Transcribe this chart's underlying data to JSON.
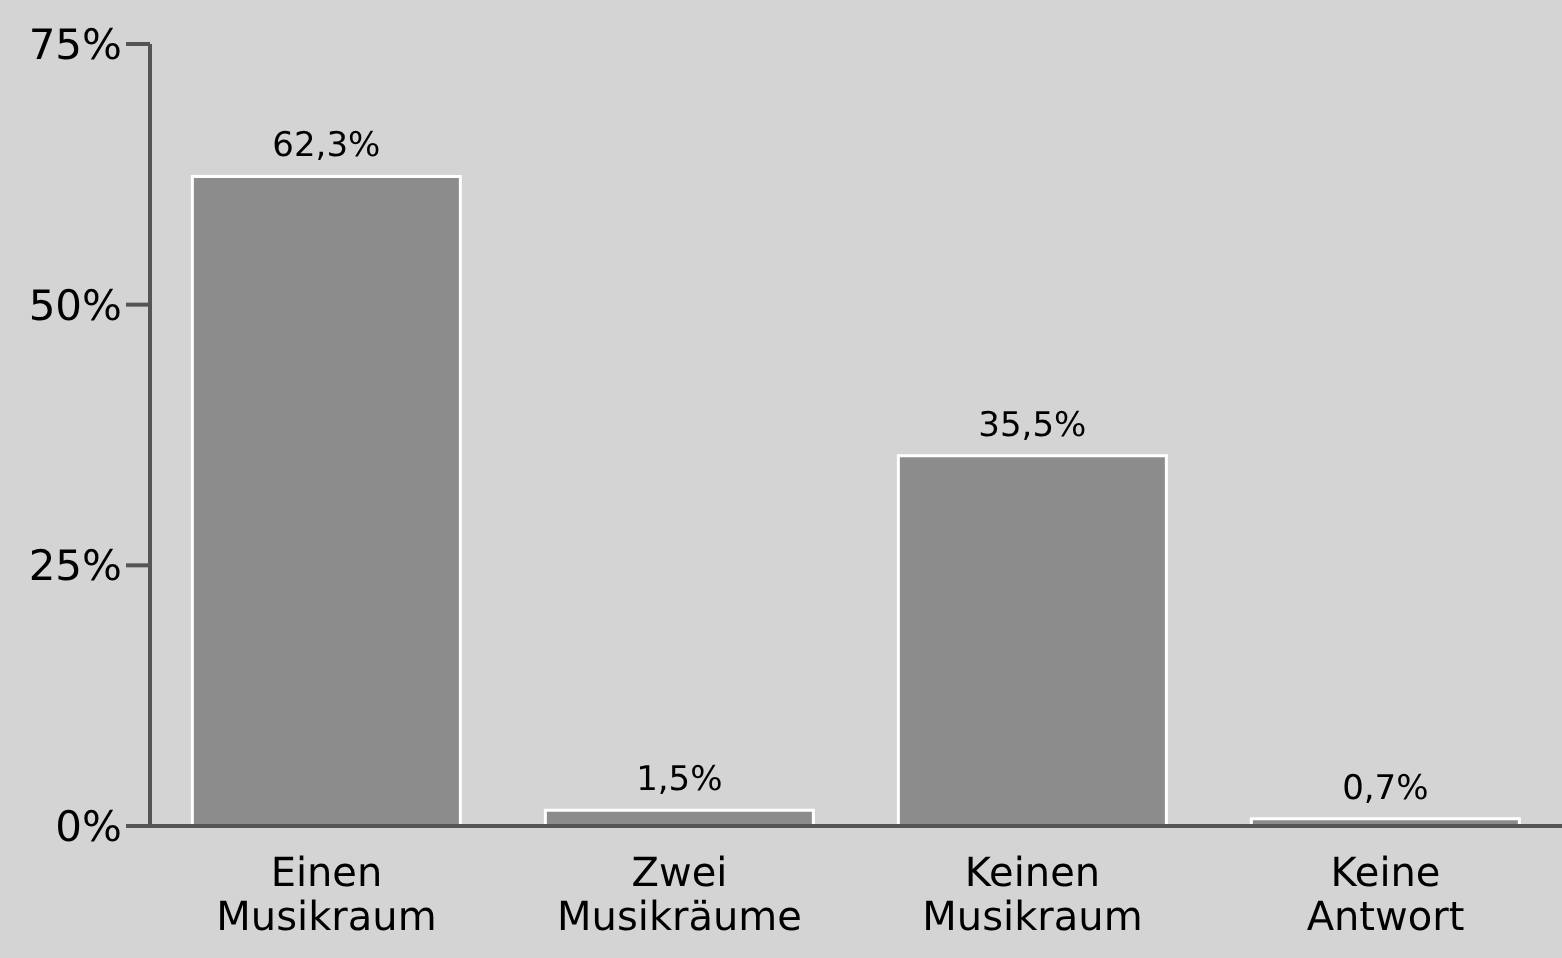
{
  "chart_data": {
    "type": "bar",
    "categories": [
      "Einen Musikraum",
      "Zwei Musikräume",
      "Keinen Musikraum",
      "Keine Antwort"
    ],
    "values": [
      62.3,
      1.5,
      35.5,
      0.7
    ],
    "color": "#8c8c8c",
    "value_labels": [
      "62,3%",
      "1,5%",
      "35,5%",
      "0,7%"
    ],
    "ylim": [
      0,
      75
    ],
    "yticks": [
      {
        "value": 0,
        "label": "0%"
      },
      {
        "value": 25,
        "label": "25%"
      },
      {
        "value": 50,
        "label": "50%"
      },
      {
        "value": 75,
        "label": "75%"
      }
    ],
    "grid": false,
    "legend": false
  }
}
